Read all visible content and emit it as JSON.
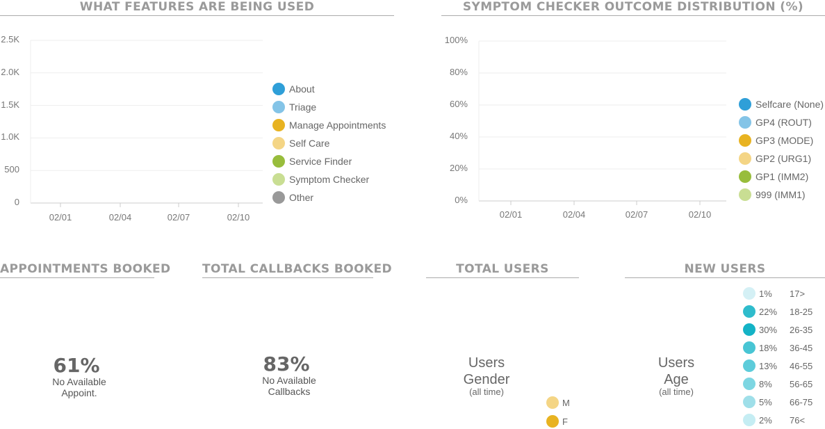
{
  "features_chart": {
    "title": "WHAT FEATURES ARE BEING USED",
    "y_ticks": [
      "2.5K",
      "2.0K",
      "1.5K",
      "1.0K",
      "500",
      "0"
    ],
    "x_ticks": [
      "02/01",
      "02/04",
      "02/07",
      "02/10"
    ],
    "legend": [
      {
        "label": "About",
        "color": "#2f9fd8"
      },
      {
        "label": "Triage",
        "color": "#84c4e7"
      },
      {
        "label": "Manage Appointments",
        "color": "#e8b321"
      },
      {
        "label": "Self Care",
        "color": "#f4d585"
      },
      {
        "label": "Service Finder",
        "color": "#98bd3c"
      },
      {
        "label": "Symptom Checker",
        "color": "#c9de93"
      },
      {
        "label": "Other",
        "color": "#999999"
      }
    ]
  },
  "outcome_chart": {
    "title": "SYMPTOM CHECKER OUTCOME DISTRIBUTION (%)",
    "y_ticks": [
      "100%",
      "80%",
      "60%",
      "40%",
      "20%",
      "0%"
    ],
    "x_ticks": [
      "02/01",
      "02/04",
      "02/07",
      "02/10"
    ],
    "legend": [
      {
        "label": "Selfcare (None)",
        "color": "#2f9fd8"
      },
      {
        "label": "GP4 (ROUT)",
        "color": "#84c4e7"
      },
      {
        "label": "GP3 (MODE)",
        "color": "#e8b321"
      },
      {
        "label": "GP2 (URG1)",
        "color": "#f4d585"
      },
      {
        "label": "GP1 (IMM2)",
        "color": "#98bd3c"
      },
      {
        "label": "999 (IMM1)",
        "color": "#c9de93"
      }
    ]
  },
  "appointments": {
    "title": "APPOINTMENTS BOOKED",
    "value": "61%",
    "line1": "No Available",
    "line2": "Appoint."
  },
  "callbacks": {
    "title": "TOTAL CALLBACKS BOOKED",
    "value": "83%",
    "line1": "No Available",
    "line2": "Callbacks"
  },
  "total_users": {
    "title": "TOTAL USERS",
    "line1": "Users",
    "line2": "Gender",
    "note": "(all time)",
    "legend": [
      {
        "label": "M",
        "color": "#f4d585"
      },
      {
        "label": "F",
        "color": "#e8b321"
      }
    ]
  },
  "new_users": {
    "title": "NEW USERS",
    "line1": "Users",
    "line2": "Age",
    "note": "(all time)",
    "ages": [
      {
        "pct": "1%",
        "range": "17>",
        "color": "#d4f0f5"
      },
      {
        "pct": "22%",
        "range": "18-25",
        "color": "#2fbccc"
      },
      {
        "pct": "30%",
        "range": "26-35",
        "color": "#14b3c6"
      },
      {
        "pct": "18%",
        "range": "36-45",
        "color": "#48c5d4"
      },
      {
        "pct": "13%",
        "range": "46-55",
        "color": "#5dccda"
      },
      {
        "pct": "8%",
        "range": "56-65",
        "color": "#7dd6e2"
      },
      {
        "pct": "5%",
        "range": "66-75",
        "color": "#9fdfe9"
      },
      {
        "pct": "2%",
        "range": "76<",
        "color": "#c5edf3"
      }
    ]
  }
}
